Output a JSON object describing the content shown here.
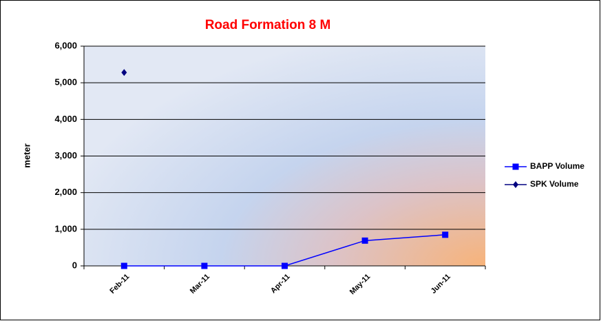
{
  "chart_data": {
    "type": "line",
    "title": "Road Formation 8 M",
    "y_label": "meter",
    "categories": [
      "Feb-11",
      "Mar-11",
      "Apr-11",
      "May-11",
      "Jun-11"
    ],
    "series": [
      {
        "name": "BAPP Volume",
        "color": "#0000ff",
        "marker": "square",
        "values": [
          0,
          0,
          0,
          690,
          850
        ]
      },
      {
        "name": "SPK Volume",
        "color": "#000080",
        "marker": "diamond",
        "values": [
          5280,
          null,
          null,
          null,
          null
        ]
      }
    ],
    "ylim": [
      0,
      6000
    ],
    "yticks": [
      0,
      {
        "value": 1000,
        "label": "1,000"
      },
      {
        "value": 2000,
        "label": "2,000"
      },
      {
        "value": 3000,
        "label": "3,000"
      },
      {
        "value": 4000,
        "label": "4,000"
      },
      {
        "value": 5000,
        "label": "5,000"
      },
      {
        "value": 6000,
        "label": "6,000"
      }
    ],
    "grid": true,
    "legend": "right"
  }
}
